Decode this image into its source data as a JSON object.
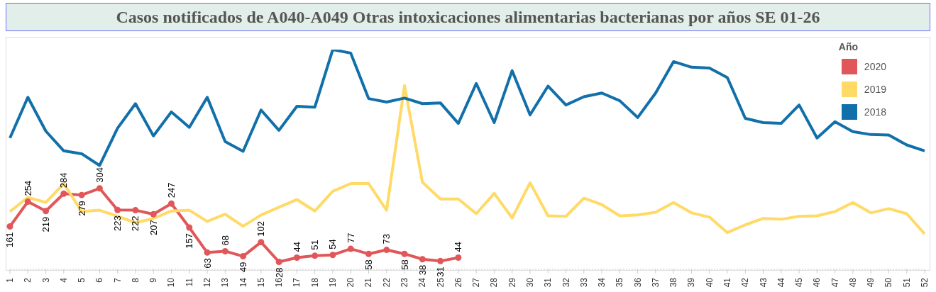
{
  "chart_data": {
    "type": "line",
    "title": "Casos notificados de A040-A049 Otras intoxicaciones alimentarias bacterianas por años SE 01-26",
    "legend_title": "Año",
    "legend": "top right",
    "tick_labels": "x",
    "line_style": "solid",
    "categories": [
      "1",
      "2",
      "3",
      "4",
      "5",
      "6",
      "7",
      "8",
      "9",
      "10",
      "11",
      "12",
      "13",
      "14",
      "15",
      "16",
      "17",
      "18",
      "19",
      "20",
      "21",
      "22",
      "23",
      "24",
      "25",
      "26",
      "27",
      "28",
      "29",
      "30",
      "31",
      "32",
      "33",
      "34",
      "35",
      "36",
      "37",
      "38",
      "39",
      "40",
      "41",
      "42",
      "43",
      "44",
      "45",
      "46",
      "47",
      "48",
      "49",
      "50",
      "51",
      "52"
    ],
    "series": [
      {
        "name": "2020",
        "color": "#e15759",
        "marker": "circle",
        "value_labels": [
          "161",
          "254",
          "219",
          "284",
          "279",
          "304",
          "223",
          "222",
          "207",
          "247",
          "157",
          "63",
          "68",
          "49",
          "102",
          "28",
          "44",
          "51",
          "54",
          "77",
          "58",
          "73",
          "58",
          "38",
          "31",
          "44",
          null,
          null,
          null,
          null,
          null,
          null,
          null,
          null,
          null,
          null,
          null,
          null,
          null,
          null,
          null,
          null,
          null,
          null,
          null,
          null,
          null,
          null,
          null,
          null,
          null,
          null
        ],
        "values": [
          161,
          254,
          219,
          284,
          279,
          304,
          223,
          222,
          207,
          247,
          157,
          63,
          68,
          49,
          102,
          28,
          44,
          51,
          54,
          77,
          58,
          73,
          58,
          38,
          31,
          44,
          null,
          null,
          null,
          null,
          null,
          null,
          null,
          null,
          null,
          null,
          null,
          null,
          null,
          null,
          null,
          null,
          null,
          null,
          null,
          null,
          null,
          null,
          null,
          null,
          null,
          null
        ]
      },
      {
        "name": "2019",
        "color": "#ffda66",
        "marker": "none",
        "values": [
          217,
          270,
          251,
          322,
          217,
          222,
          199,
          175,
          191,
          219,
          222,
          180,
          207,
          162,
          204,
          233,
          262,
          219,
          293,
          322,
          322,
          222,
          690,
          327,
          264,
          264,
          209,
          285,
          193,
          325,
          201,
          199,
          267,
          243,
          201,
          204,
          214,
          251,
          212,
          196,
          138,
          167,
          191,
          188,
          199,
          201,
          217,
          251,
          212,
          228,
          209,
          133
        ]
      },
      {
        "name": "2018",
        "color": "#1170aa",
        "marker": "none",
        "values": [
          493,
          646,
          519,
          445,
          434,
          390,
          530,
          622,
          501,
          591,
          533,
          646,
          480,
          443,
          598,
          522,
          612,
          609,
          825,
          812,
          641,
          628,
          643,
          622,
          625,
          548,
          698,
          551,
          746,
          580,
          688,
          617,
          648,
          662,
          633,
          570,
          662,
          780,
          759,
          756,
          720,
          567,
          551,
          548,
          617,
          493,
          554,
          517,
          506,
          504,
          467,
          445
        ]
      }
    ]
  }
}
